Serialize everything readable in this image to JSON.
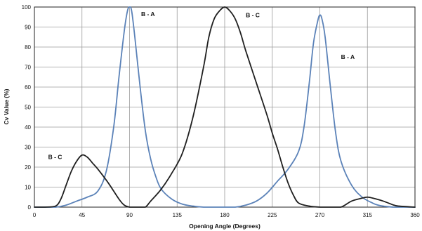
{
  "chart_data": {
    "type": "line",
    "title": "",
    "xlabel": "Opening Angle (Degrees)",
    "ylabel": "Cv Value (%)",
    "xlim": [
      0,
      360
    ],
    "ylim": [
      0,
      100
    ],
    "xticks": [
      0,
      45,
      90,
      135,
      180,
      225,
      270,
      315,
      360
    ],
    "xtick_labels": [
      "0",
      "45",
      "90",
      "135",
      "180",
      "225",
      "270",
      "315",
      "360"
    ],
    "yticks": [
      0,
      10,
      20,
      30,
      40,
      50,
      60,
      70,
      80,
      90,
      100
    ],
    "ytick_labels": [
      "0",
      "10",
      "20",
      "30",
      "40",
      "50",
      "60",
      "70",
      "80",
      "90",
      "100"
    ],
    "grid": true,
    "series": [
      {
        "name": "B - A",
        "color": "#5b82b8",
        "x": [
          0,
          20,
          30,
          40,
          50,
          60,
          68,
          75,
          80,
          85,
          88,
          90,
          92,
          95,
          100,
          105,
          110,
          115,
          120,
          130,
          140,
          150,
          160,
          170,
          180,
          190,
          200,
          210,
          220,
          230,
          240,
          250,
          255,
          260,
          264,
          268,
          270,
          272,
          275,
          280,
          285,
          290,
          300,
          310,
          320,
          325,
          330,
          335,
          340,
          345,
          360
        ],
        "y": [
          0,
          0,
          1,
          3,
          5,
          8,
          18,
          40,
          65,
          88,
          98,
          100,
          98,
          85,
          60,
          38,
          24,
          15,
          9,
          4,
          1.5,
          0.5,
          0,
          0,
          0,
          0,
          1,
          3,
          7,
          13,
          19,
          28,
          40,
          62,
          82,
          93,
          96,
          94,
          85,
          60,
          37,
          23,
          11,
          5,
          2,
          1,
          0.5,
          0.2,
          0,
          0,
          0
        ]
      },
      {
        "name": "B - C",
        "color": "#1f1f1f",
        "x": [
          0,
          10,
          20,
          25,
          30,
          35,
          40,
          45,
          50,
          55,
          60,
          70,
          80,
          85,
          90,
          95,
          100,
          105,
          110,
          120,
          130,
          140,
          150,
          160,
          165,
          170,
          175,
          180,
          185,
          190,
          195,
          200,
          210,
          220,
          225,
          230,
          235,
          240,
          245,
          250,
          260,
          270,
          280,
          290,
          300,
          310,
          315,
          320,
          330,
          340,
          345,
          360
        ],
        "y": [
          0,
          0,
          0.5,
          4,
          11,
          18,
          23,
          26,
          25,
          22,
          19,
          12,
          4,
          1,
          0,
          0,
          0,
          0,
          3,
          9,
          17,
          27,
          45,
          70,
          85,
          94,
          98,
          100,
          98,
          94,
          87,
          78,
          62,
          46,
          37,
          29,
          20,
          12,
          6,
          2,
          0.5,
          0,
          0,
          0,
          3,
          4.5,
          5,
          4.5,
          3,
          1,
          0.5,
          0
        ]
      }
    ],
    "annotations": [
      {
        "text": "B - A",
        "x": 101,
        "y": 95.5
      },
      {
        "text": "B - C",
        "x": 200,
        "y": 95
      },
      {
        "text": "B - A",
        "x": 290,
        "y": 74
      },
      {
        "text": "B - C",
        "x": 13,
        "y": 24
      }
    ]
  }
}
